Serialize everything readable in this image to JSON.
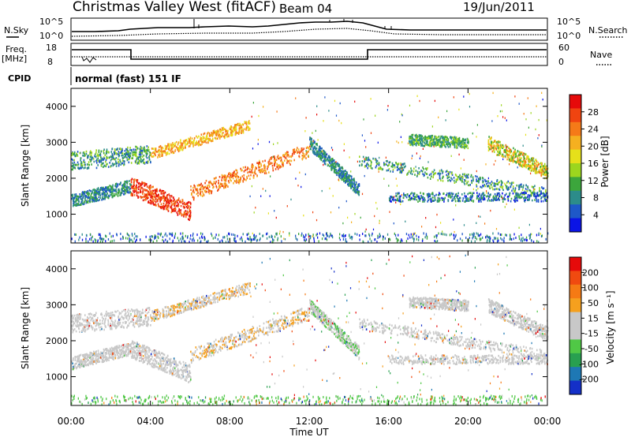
{
  "header": {
    "title": "Christmas Valley West (fitACF)",
    "beam": "Beam 04",
    "date": "19/Jun/2011"
  },
  "top_panel": {
    "nsky_label": "N.Sky",
    "nsearch_label": "N.Search",
    "nsky_ticks": [
      "10^5",
      "10^0"
    ],
    "nsearch_ticks": [
      "10^5",
      "10^0"
    ],
    "freq_label": "Freq.",
    "freq_unit": "[MHz]",
    "freq_ticks": [
      "18",
      "8"
    ],
    "nave_label": "Nave",
    "nave_ticks": [
      "60",
      "0"
    ],
    "cpid_label": "CPID",
    "cpid_text": "normal (fast) 151 IF"
  },
  "chart_data": [
    {
      "type": "heatmap",
      "name": "power-panel",
      "ylabel": "Slant Range [km]",
      "y_ticks": [
        1000,
        2000,
        3000,
        4000
      ],
      "ylim": [
        200,
        4500
      ],
      "xlim_hours": [
        0,
        24
      ],
      "colorbar": {
        "label": "Power [dB]",
        "ticks": [
          "4",
          "8",
          "12",
          "16",
          "20",
          "24",
          "28"
        ],
        "colors": [
          "#0a14e6",
          "#1e58c8",
          "#2c8c8a",
          "#3ca63c",
          "#9cd61e",
          "#e6e01a",
          "#f5b020",
          "#f57a18",
          "#f04410",
          "#e60a0a"
        ]
      }
    },
    {
      "type": "heatmap",
      "name": "velocity-panel",
      "ylabel": "Slant Range [km]",
      "y_ticks": [
        1000,
        2000,
        3000,
        4000
      ],
      "ylim": [
        200,
        4500
      ],
      "xlim_hours": [
        0,
        24
      ],
      "colorbar": {
        "label": "Velocity [m s⁻¹]",
        "ticks": [
          "200",
          "100",
          "50",
          "15",
          "-15",
          "-50",
          "-100",
          "-200"
        ],
        "colors": [
          "#1430c8",
          "#1e78b4",
          "#28a050",
          "#50c846",
          "#c8c8c8",
          "#c8c8c8",
          "#f5a01e",
          "#f57a14",
          "#f04a10",
          "#e60a0a"
        ]
      }
    }
  ],
  "x_axis": {
    "label": "Time UT",
    "ticks": [
      "00:00",
      "04:00",
      "08:00",
      "12:00",
      "16:00",
      "20:00",
      "00:00"
    ]
  }
}
